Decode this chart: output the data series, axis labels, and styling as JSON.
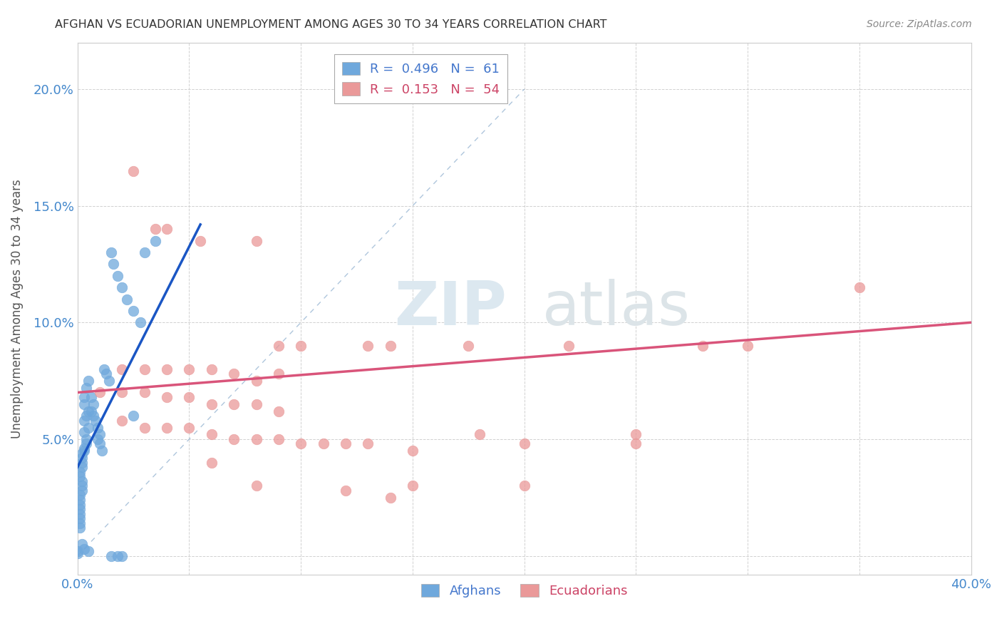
{
  "title": "AFGHAN VS ECUADORIAN UNEMPLOYMENT AMONG AGES 30 TO 34 YEARS CORRELATION CHART",
  "source": "Source: ZipAtlas.com",
  "ylabel": "Unemployment Among Ages 30 to 34 years",
  "xlim": [
    0.0,
    0.4
  ],
  "ylim": [
    -0.008,
    0.22
  ],
  "xticks": [
    0.0,
    0.05,
    0.1,
    0.15,
    0.2,
    0.25,
    0.3,
    0.35,
    0.4
  ],
  "yticks": [
    0.0,
    0.05,
    0.1,
    0.15,
    0.2
  ],
  "xtick_labels": [
    "0.0%",
    "",
    "",
    "",
    "",
    "",
    "",
    "",
    "40.0%"
  ],
  "ytick_labels": [
    "",
    "5.0%",
    "10.0%",
    "15.0%",
    "20.0%"
  ],
  "afghan_color": "#6fa8dc",
  "ecuadorian_color": "#ea9999",
  "afghan_R": 0.496,
  "afghan_N": 61,
  "ecuadorian_R": 0.153,
  "ecuadorian_N": 54,
  "watermark_zip": "ZIP",
  "watermark_atlas": "atlas",
  "background_color": "#ffffff",
  "grid_color": "#cccccc",
  "afghan_scatter": [
    [
      0.003,
      0.068
    ],
    [
      0.004,
      0.072
    ],
    [
      0.005,
      0.075
    ],
    [
      0.003,
      0.065
    ],
    [
      0.005,
      0.062
    ],
    [
      0.004,
      0.06
    ],
    [
      0.003,
      0.058
    ],
    [
      0.005,
      0.055
    ],
    [
      0.003,
      0.053
    ],
    [
      0.004,
      0.05
    ],
    [
      0.004,
      0.048
    ],
    [
      0.003,
      0.046
    ],
    [
      0.003,
      0.045
    ],
    [
      0.002,
      0.044
    ],
    [
      0.002,
      0.042
    ],
    [
      0.002,
      0.04
    ],
    [
      0.002,
      0.038
    ],
    [
      0.001,
      0.036
    ],
    [
      0.001,
      0.034
    ],
    [
      0.002,
      0.032
    ],
    [
      0.002,
      0.03
    ],
    [
      0.002,
      0.028
    ],
    [
      0.001,
      0.026
    ],
    [
      0.001,
      0.024
    ],
    [
      0.001,
      0.022
    ],
    [
      0.001,
      0.02
    ],
    [
      0.001,
      0.018
    ],
    [
      0.001,
      0.016
    ],
    [
      0.001,
      0.014
    ],
    [
      0.001,
      0.012
    ],
    [
      0.006,
      0.068
    ],
    [
      0.007,
      0.065
    ],
    [
      0.006,
      0.062
    ],
    [
      0.007,
      0.06
    ],
    [
      0.008,
      0.058
    ],
    [
      0.009,
      0.055
    ],
    [
      0.01,
      0.052
    ],
    [
      0.009,
      0.05
    ],
    [
      0.01,
      0.048
    ],
    [
      0.011,
      0.045
    ],
    [
      0.012,
      0.08
    ],
    [
      0.013,
      0.078
    ],
    [
      0.014,
      0.075
    ],
    [
      0.015,
      0.13
    ],
    [
      0.016,
      0.125
    ],
    [
      0.018,
      0.12
    ],
    [
      0.02,
      0.115
    ],
    [
      0.022,
      0.11
    ],
    [
      0.025,
      0.105
    ],
    [
      0.028,
      0.1
    ],
    [
      0.03,
      0.13
    ],
    [
      0.035,
      0.135
    ],
    [
      0.002,
      0.005
    ],
    [
      0.003,
      0.003
    ],
    [
      0.005,
      0.002
    ],
    [
      0.015,
      0.0
    ],
    [
      0.018,
      0.0
    ],
    [
      0.02,
      0.0
    ],
    [
      0.0,
      0.002
    ],
    [
      0.0,
      0.001
    ],
    [
      0.025,
      0.06
    ]
  ],
  "ecuadorian_scatter": [
    [
      0.025,
      0.165
    ],
    [
      0.035,
      0.14
    ],
    [
      0.04,
      0.14
    ],
    [
      0.055,
      0.135
    ],
    [
      0.08,
      0.135
    ],
    [
      0.09,
      0.09
    ],
    [
      0.1,
      0.09
    ],
    [
      0.13,
      0.09
    ],
    [
      0.14,
      0.09
    ],
    [
      0.175,
      0.09
    ],
    [
      0.22,
      0.09
    ],
    [
      0.28,
      0.09
    ],
    [
      0.35,
      0.115
    ],
    [
      0.02,
      0.08
    ],
    [
      0.03,
      0.08
    ],
    [
      0.04,
      0.08
    ],
    [
      0.05,
      0.08
    ],
    [
      0.06,
      0.08
    ],
    [
      0.07,
      0.078
    ],
    [
      0.08,
      0.075
    ],
    [
      0.09,
      0.078
    ],
    [
      0.01,
      0.07
    ],
    [
      0.02,
      0.07
    ],
    [
      0.03,
      0.07
    ],
    [
      0.04,
      0.068
    ],
    [
      0.05,
      0.068
    ],
    [
      0.06,
      0.065
    ],
    [
      0.07,
      0.065
    ],
    [
      0.08,
      0.065
    ],
    [
      0.09,
      0.062
    ],
    [
      0.02,
      0.058
    ],
    [
      0.03,
      0.055
    ],
    [
      0.04,
      0.055
    ],
    [
      0.05,
      0.055
    ],
    [
      0.06,
      0.052
    ],
    [
      0.07,
      0.05
    ],
    [
      0.08,
      0.05
    ],
    [
      0.09,
      0.05
    ],
    [
      0.1,
      0.048
    ],
    [
      0.11,
      0.048
    ],
    [
      0.12,
      0.048
    ],
    [
      0.13,
      0.048
    ],
    [
      0.15,
      0.045
    ],
    [
      0.2,
      0.048
    ],
    [
      0.25,
      0.052
    ],
    [
      0.06,
      0.04
    ],
    [
      0.08,
      0.03
    ],
    [
      0.15,
      0.03
    ],
    [
      0.2,
      0.03
    ],
    [
      0.12,
      0.028
    ],
    [
      0.14,
      0.025
    ],
    [
      0.18,
      0.052
    ],
    [
      0.25,
      0.048
    ],
    [
      0.3,
      0.09
    ]
  ],
  "afghan_line": [
    [
      0.0,
      0.038
    ],
    [
      0.055,
      0.142
    ]
  ],
  "ecuadorian_line": [
    [
      0.0,
      0.07
    ],
    [
      0.4,
      0.1
    ]
  ],
  "ref_line": [
    [
      0.0,
      0.0
    ],
    [
      0.2,
      0.2
    ]
  ]
}
